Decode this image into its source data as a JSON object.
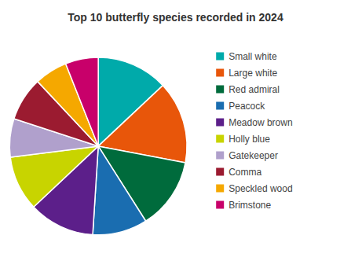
{
  "chart_data": {
    "type": "pie",
    "title": "Top 10 butterfly species recorded in 2024",
    "categories": [
      "Small white",
      "Large white",
      "Red admiral",
      "Peacock",
      "Meadow brown",
      "Holly blue",
      "Gatekeeper",
      "Comma",
      "Speckled wood",
      "Brimstone"
    ],
    "values": [
      13,
      15,
      13,
      10,
      12,
      10,
      7,
      8,
      6,
      6
    ],
    "colors": [
      "#00AAAA",
      "#E8560A",
      "#006B3C",
      "#1A6DB0",
      "#5C1F8A",
      "#C8D400",
      "#B0A0CC",
      "#9B1B30",
      "#F5A800",
      "#C8006A"
    ],
    "legend": "right"
  }
}
